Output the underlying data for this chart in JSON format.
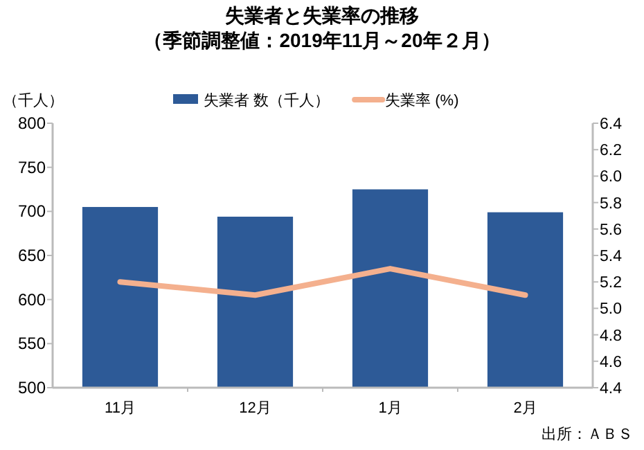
{
  "chart_data": {
    "type": "bar",
    "title": "失業者と失業率の推移",
    "subtitle": "（季節調整値：2019年11月～20年２月）",
    "ylabel": "（千人）",
    "categories": [
      "11月",
      "12月",
      "1月",
      "2月"
    ],
    "series": [
      {
        "name": "失業者 数（千人）",
        "color": "#2d5a97",
        "values": [
          705,
          694,
          725,
          699
        ]
      },
      {
        "name": "失業率 (%)",
        "type": "line",
        "axis": "y2",
        "color": "#f4b08e",
        "values": [
          5.2,
          5.1,
          5.3,
          5.1
        ]
      }
    ],
    "ylim": [
      500,
      800
    ],
    "yticks": [
      500,
      550,
      600,
      650,
      700,
      750,
      800
    ],
    "y2lim": [
      4.4,
      6.4
    ],
    "y2ticks": [
      4.4,
      4.6,
      4.8,
      {
        "value": 5.0,
        "label": "5.0"
      },
      5.2,
      5.4,
      5.6,
      5.8,
      {
        "value": 6.0,
        "label": "6.0"
      },
      6.2,
      6.4
    ],
    "legend": "top",
    "annotations": [
      "出所：ＡＢＳ"
    ]
  }
}
